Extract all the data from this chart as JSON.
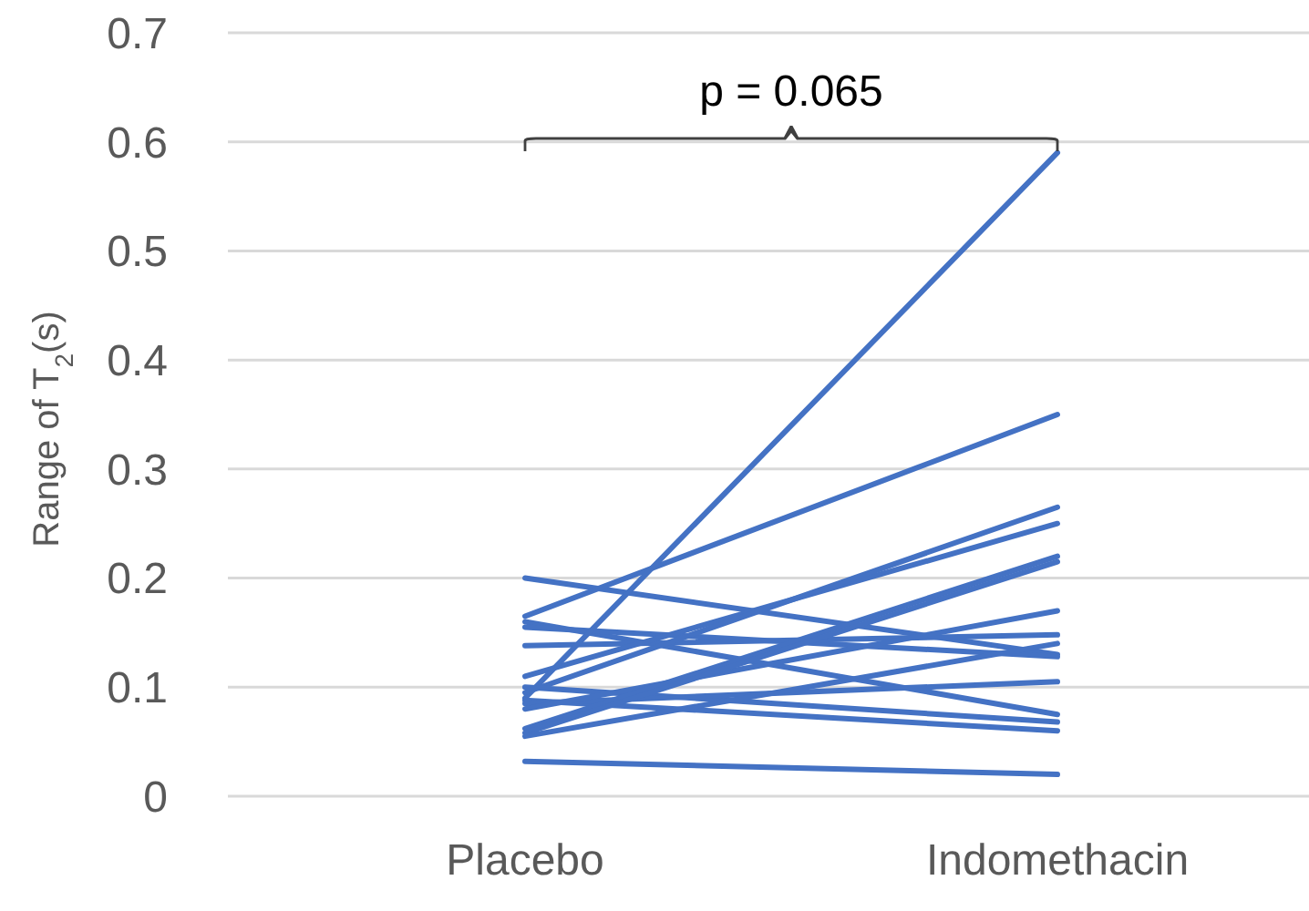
{
  "chart_data": {
    "type": "line",
    "ylabel": "Range of T$_{2}$(s)",
    "categories": [
      "Placebo",
      "Indomethacin"
    ],
    "series": [
      {
        "color": "#4472c4",
        "values": [
          0.2,
          0.13
        ]
      },
      {
        "color": "#4472c4",
        "values": [
          0.165,
          0.35
        ]
      },
      {
        "color": "#4472c4",
        "values": [
          0.16,
          0.075
        ]
      },
      {
        "color": "#4472c4",
        "values": [
          0.155,
          0.128
        ]
      },
      {
        "color": "#4472c4",
        "values": [
          0.138,
          0.148
        ]
      },
      {
        "color": "#4472c4",
        "values": [
          0.11,
          0.25
        ]
      },
      {
        "color": "#4472c4",
        "values": [
          0.09,
          0.59
        ]
      },
      {
        "color": "#4472c4",
        "values": [
          0.095,
          0.265
        ]
      },
      {
        "color": "#4472c4",
        "values": [
          0.1,
          0.068
        ]
      },
      {
        "color": "#4472c4",
        "values": [
          0.088,
          0.06
        ]
      },
      {
        "color": "#4472c4",
        "values": [
          0.085,
          0.105
        ]
      },
      {
        "color": "#4472c4",
        "values": [
          0.08,
          0.17
        ]
      },
      {
        "color": "#4472c4",
        "values": [
          0.062,
          0.22
        ]
      },
      {
        "color": "#4472c4",
        "values": [
          0.058,
          0.215
        ]
      },
      {
        "color": "#4472c4",
        "values": [
          0.055,
          0.14
        ]
      },
      {
        "color": "#4472c4",
        "values": [
          0.032,
          0.02
        ]
      }
    ],
    "ylim": [
      0,
      0.7
    ],
    "yticks": [
      0,
      0.1,
      0.2,
      0.3,
      0.4,
      0.5,
      0.6,
      0.7
    ],
    "grid": "y",
    "line_style": "solid",
    "marker": "none",
    "annotations": [
      "p = 0.065"
    ]
  }
}
